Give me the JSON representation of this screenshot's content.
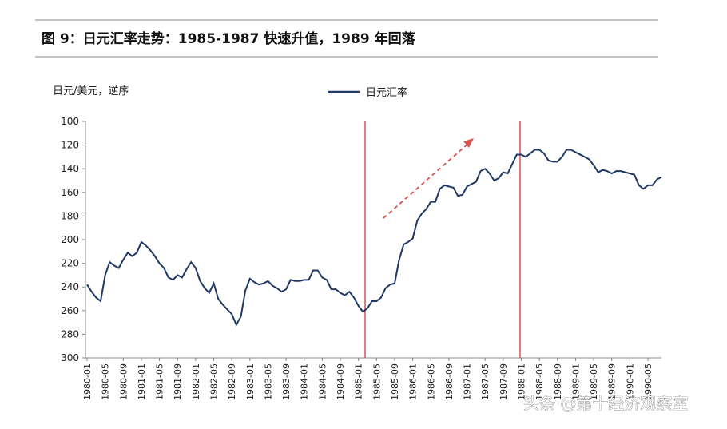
{
  "chart_data": {
    "type": "line",
    "title": "图 9：日元汇率走势：1985-1987 快速升值，1989 年回落",
    "y_label": "日元/美元，逆序",
    "y_reversed": true,
    "ylim": [
      100,
      300
    ],
    "yticks": [
      100,
      120,
      140,
      160,
      180,
      200,
      220,
      240,
      260,
      280,
      300
    ],
    "categories": [
      "1980-01",
      null,
      null,
      null,
      "1980-05",
      null,
      null,
      null,
      "1980-09",
      null,
      null,
      null,
      "1981-01",
      null,
      null,
      null,
      "1981-05",
      null,
      null,
      null,
      "1981-09",
      null,
      null,
      null,
      "1982-01",
      null,
      null,
      null,
      "1982-05",
      null,
      null,
      null,
      "1982-09",
      null,
      null,
      null,
      "1983-01",
      null,
      null,
      null,
      "1983-05",
      null,
      null,
      null,
      "1983-09",
      null,
      null,
      null,
      "1984-01",
      null,
      null,
      null,
      "1984-05",
      null,
      null,
      null,
      "1984-09",
      null,
      null,
      null,
      "1985-01",
      null,
      null,
      null,
      "1985-05",
      null,
      null,
      null,
      "1985-09",
      null,
      null,
      null,
      "1986-01",
      null,
      null,
      null,
      "1986-05",
      null,
      null,
      null,
      "1986-09",
      null,
      null,
      null,
      "1987-01",
      null,
      null,
      null,
      "1987-05",
      null,
      null,
      null,
      "1987-09",
      null,
      null,
      null,
      "1988-01",
      null,
      null,
      null,
      "1988-05",
      null,
      null,
      null,
      "1988-09",
      null,
      null,
      null,
      "1989-01",
      null,
      null,
      null,
      "1989-05",
      null,
      null,
      null,
      "1989-09",
      null,
      null,
      null,
      "1990-01",
      null,
      null,
      null,
      "1990-05",
      null,
      null,
      null
    ],
    "series": [
      {
        "name": "日元汇率",
        "color": "#1f3864",
        "values": [
          238,
          244,
          249,
          252,
          230,
          219,
          222,
          224,
          217,
          211,
          214,
          211,
          202,
          205,
          209,
          214,
          220,
          224,
          232,
          234,
          230,
          232,
          225,
          219,
          224,
          235,
          241,
          245,
          237,
          250,
          255,
          259,
          263,
          272,
          265,
          243,
          233,
          236,
          238,
          237,
          235,
          239,
          241,
          244,
          242,
          234,
          235,
          235,
          234,
          234,
          226,
          226,
          232,
          234,
          242,
          242,
          245,
          247,
          244,
          249,
          256,
          261,
          258,
          252,
          252,
          249,
          241,
          238,
          237,
          217,
          204,
          202,
          199,
          184,
          178,
          174,
          168,
          168,
          157,
          154,
          155,
          156,
          163,
          162,
          155,
          153,
          151,
          142,
          140,
          144,
          150,
          148,
          143,
          144,
          136,
          128,
          128,
          130,
          127,
          124,
          124,
          127,
          133,
          134,
          134,
          130,
          124,
          124,
          126,
          128,
          130,
          132,
          137,
          143,
          141,
          142,
          144,
          142,
          142,
          143,
          144,
          145,
          154,
          157,
          154,
          154,
          149,
          147
        ]
      }
    ]
  },
  "watermark": "头条 @第十经济观察室"
}
